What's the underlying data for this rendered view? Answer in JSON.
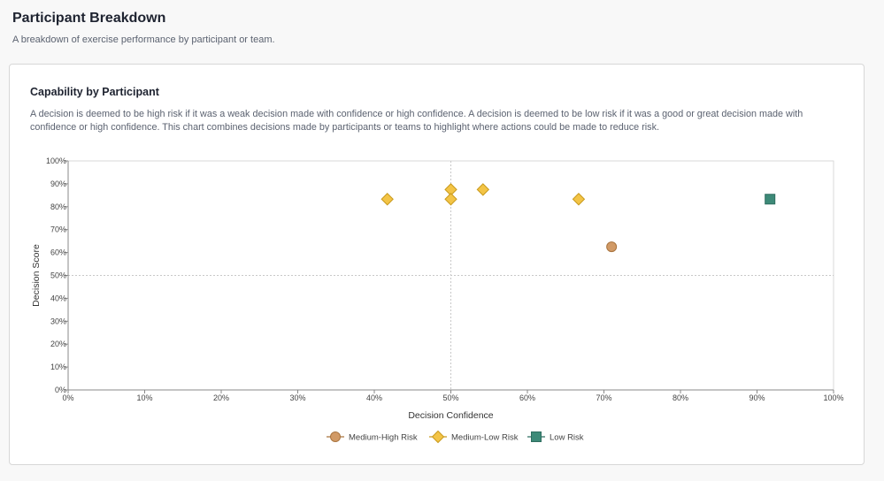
{
  "page": {
    "title": "Participant Breakdown",
    "subtitle": "A breakdown of exercise performance by participant or team."
  },
  "card": {
    "title": "Capability by Participant",
    "description": "A decision is deemed to be high risk if it was a weak decision made with confidence or high confidence. A decision is deemed to be low risk if it was a good or great decision made with confidence or high confidence. This chart combines decisions made by participants or teams to highlight where actions could be made to reduce risk."
  },
  "chart_data": {
    "type": "scatter",
    "xlabel": "Decision Confidence",
    "ylabel": "Decision Score",
    "xlim": [
      0,
      100
    ],
    "ylim": [
      0,
      100
    ],
    "x_ticks": [
      "0%",
      "10%",
      "20%",
      "30%",
      "40%",
      "50%",
      "60%",
      "70%",
      "80%",
      "90%",
      "100%"
    ],
    "y_ticks": [
      "0%",
      "10%",
      "20%",
      "30%",
      "40%",
      "50%",
      "60%",
      "70%",
      "80%",
      "90%",
      "100%"
    ],
    "reference_lines": {
      "x": 50,
      "y": 50
    },
    "legend_position": "bottom",
    "series": [
      {
        "name": "Medium-High Risk",
        "marker": "circle",
        "color": "#d19a66",
        "stroke": "#a9743f",
        "points": [
          {
            "x": 71,
            "y": 62.5
          }
        ]
      },
      {
        "name": "Medium-Low Risk",
        "marker": "diamond",
        "color": "#f3c446",
        "stroke": "#c99a1c",
        "points": [
          {
            "x": 41.7,
            "y": 83.3
          },
          {
            "x": 50,
            "y": 87.5
          },
          {
            "x": 50,
            "y": 83.3
          },
          {
            "x": 54.2,
            "y": 87.5
          },
          {
            "x": 66.7,
            "y": 83.3
          }
        ]
      },
      {
        "name": "Low Risk",
        "marker": "square",
        "color": "#3d8a78",
        "stroke": "#2f6e60",
        "points": [
          {
            "x": 91.7,
            "y": 83.3
          }
        ]
      }
    ]
  }
}
